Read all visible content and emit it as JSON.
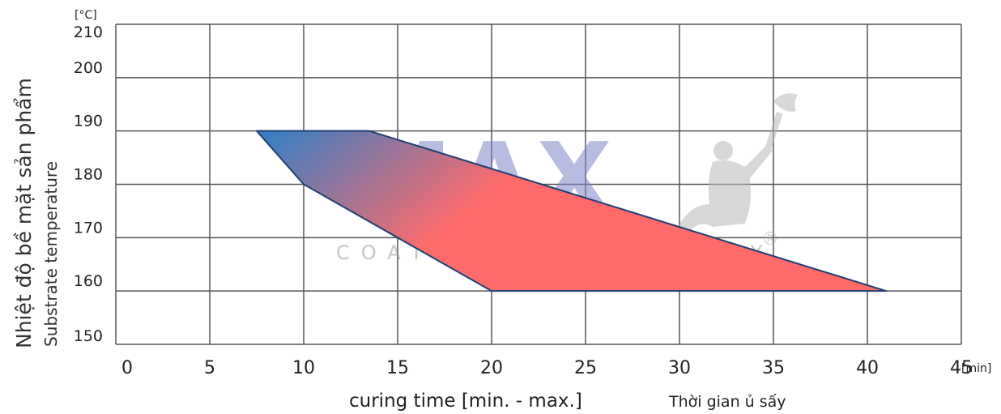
{
  "chart_data": {
    "type": "area",
    "ylabel_vi": "Nhiệt độ bề mặt sản phẩm",
    "ylabel_en": "Substrate temperature",
    "y_unit": "[°C]",
    "x_unit": "[min]",
    "xlabel_en": "curing time [min. - max.]",
    "xlabel_vi": "Thời gian ủ sấy",
    "xlim": [
      0,
      45
    ],
    "ylim": [
      150,
      210
    ],
    "x_ticks": [
      0,
      5,
      10,
      15,
      20,
      25,
      30,
      35,
      40,
      45
    ],
    "y_ticks": [
      150,
      160,
      170,
      180,
      190,
      200,
      210
    ],
    "grid": true,
    "curing_window": {
      "polygon": [
        {
          "x": 7.5,
          "y": 190
        },
        {
          "x": 13.5,
          "y": 190
        },
        {
          "x": 41,
          "y": 160
        },
        {
          "x": 20,
          "y": 160
        },
        {
          "x": 10,
          "y": 180
        }
      ],
      "min_time_edge": [
        {
          "x": 7.5,
          "y": 190
        },
        {
          "x": 10,
          "y": 180
        },
        {
          "x": 20,
          "y": 160
        }
      ],
      "max_time_edge": [
        {
          "x": 13.5,
          "y": 190
        },
        {
          "x": 41,
          "y": 160
        }
      ]
    },
    "colors": {
      "fill_start": "#2f80c8",
      "fill_end": "#ff6b6b",
      "outline": "#1f3f73",
      "grid": "#555555"
    }
  },
  "watermark": {
    "brand": "MAX",
    "tagline": "COATINGSTECHNOLOGY",
    "registered": "®",
    "figure_icon": "torch-bearer-figure-icon"
  }
}
